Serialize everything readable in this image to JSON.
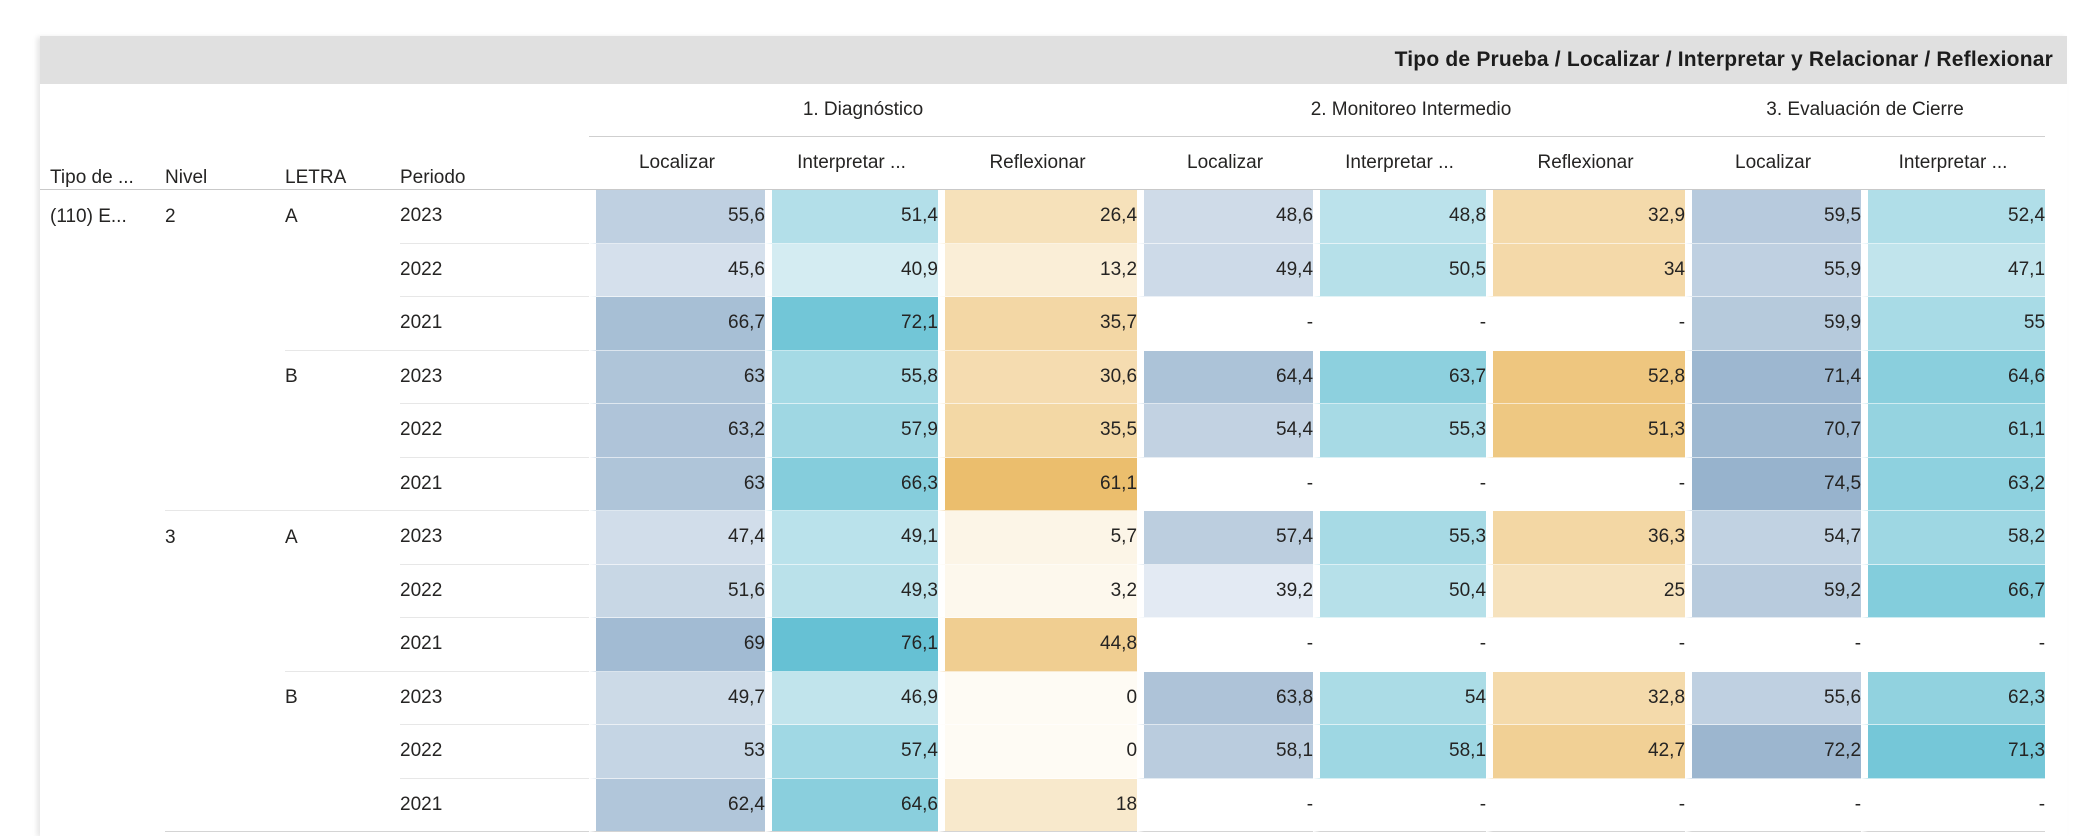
{
  "title": "Tipo de Prueba / Localizar / Interpretar y Relacionar / Reflexionar",
  "title_bar_bg": "#e0e0e0",
  "chart_data": {
    "type": "table",
    "title": "Tipo de Prueba / Localizar / Interpretar y Relacionar / Reflexionar",
    "row_header_columns": [
      "Tipo de ...",
      "Nivel",
      "LETRA",
      "Periodo"
    ],
    "column_groups": [
      {
        "label": "1. Diagnóstico",
        "columns": [
          "Localizar",
          "Interpretar ...",
          "Reflexionar"
        ]
      },
      {
        "label": "2. Monitoreo Intermedio",
        "columns": [
          "Localizar",
          "Interpretar ...",
          "Reflexionar"
        ]
      },
      {
        "label": "3. Evaluación de Cierre",
        "columns": [
          "Localizar",
          "Interpretar ..."
        ]
      }
    ],
    "missing_value_symbol": "-",
    "rows": [
      {
        "tipo": "(110) E...",
        "nivel": "2",
        "letra": "A",
        "periodo": "2023",
        "values": [
          "55,6",
          "51,4",
          "26,4",
          "48,6",
          "48,8",
          "32,9",
          "59,5",
          "52,4"
        ]
      },
      {
        "periodo": "2022",
        "values": [
          "45,6",
          "40,9",
          "13,2",
          "49,4",
          "50,5",
          "34",
          "55,9",
          "47,1"
        ]
      },
      {
        "periodo": "2021",
        "values": [
          "66,7",
          "72,1",
          "35,7",
          "-",
          "-",
          "-",
          "59,9",
          "55"
        ]
      },
      {
        "letra": "B",
        "periodo": "2023",
        "values": [
          "63",
          "55,8",
          "30,6",
          "64,4",
          "63,7",
          "52,8",
          "71,4",
          "64,6"
        ]
      },
      {
        "periodo": "2022",
        "values": [
          "63,2",
          "57,9",
          "35,5",
          "54,4",
          "55,3",
          "51,3",
          "70,7",
          "61,1"
        ]
      },
      {
        "periodo": "2021",
        "values": [
          "63",
          "66,3",
          "61,1",
          "-",
          "-",
          "-",
          "74,5",
          "63,2"
        ]
      },
      {
        "nivel": "3",
        "letra": "A",
        "periodo": "2023",
        "values": [
          "47,4",
          "49,1",
          "5,7",
          "57,4",
          "55,3",
          "36,3",
          "54,7",
          "58,2"
        ]
      },
      {
        "periodo": "2022",
        "values": [
          "51,6",
          "49,3",
          "3,2",
          "39,2",
          "50,4",
          "25",
          "59,2",
          "66,7"
        ]
      },
      {
        "periodo": "2021",
        "values": [
          "69",
          "76,1",
          "44,8",
          "-",
          "-",
          "-",
          "-",
          "-"
        ]
      },
      {
        "letra": "B",
        "periodo": "2023",
        "values": [
          "49,7",
          "46,9",
          "0",
          "63,8",
          "54",
          "32,8",
          "55,6",
          "62,3"
        ]
      },
      {
        "periodo": "2022",
        "values": [
          "53",
          "57,4",
          "0",
          "58,1",
          "58,1",
          "42,7",
          "72,2",
          "71,3"
        ]
      },
      {
        "periodo": "2021",
        "values": [
          "62,4",
          "64,6",
          "18",
          "-",
          "-",
          "-",
          "-",
          "-"
        ]
      }
    ]
  },
  "conditional_formatting": {
    "column_kinds": [
      "localizar",
      "interpretar",
      "reflexionar",
      "localizar",
      "interpretar",
      "reflexionar",
      "localizar",
      "interpretar"
    ],
    "scales": {
      "localizar": {
        "min": 35,
        "max": 78,
        "light": "#ecf1f7",
        "dark": "#8fadc9"
      },
      "interpretar": {
        "min": 38,
        "max": 78,
        "light": "#ddeff4",
        "dark": "#60bfd2"
      },
      "reflexionar": {
        "min": 0,
        "max": 65,
        "light": "#fefbf4",
        "dark": "#eaba64"
      }
    },
    "missing_bg": "#ffffff"
  }
}
